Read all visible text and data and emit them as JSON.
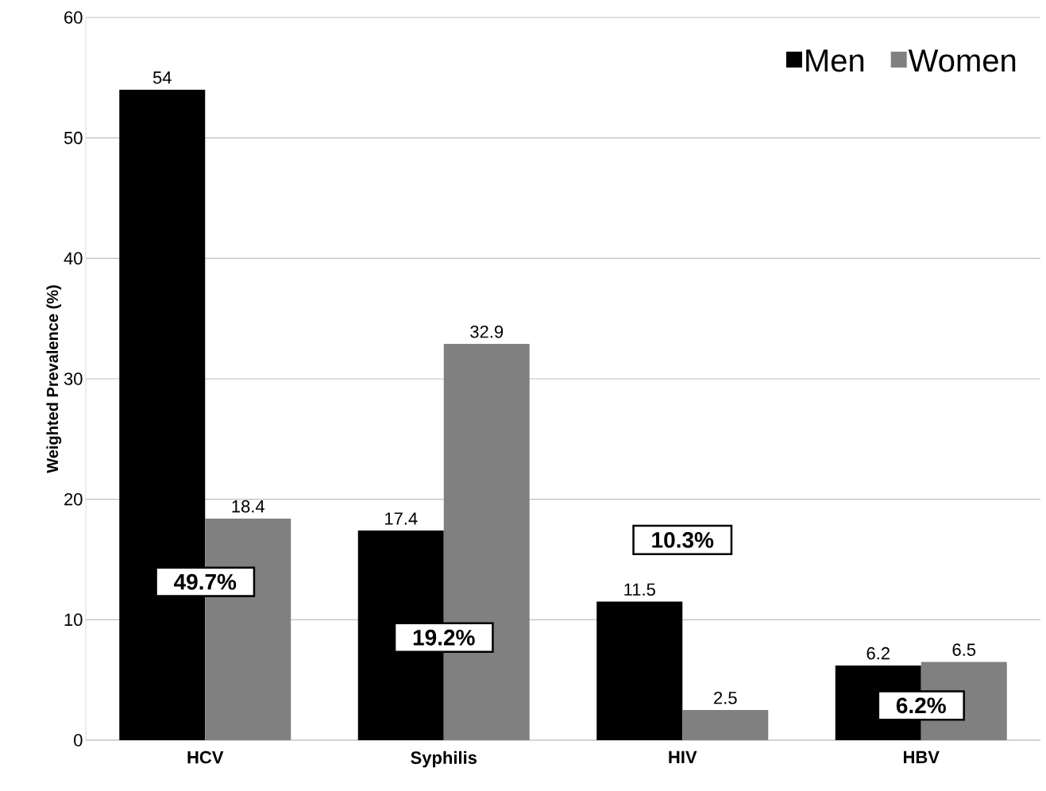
{
  "chart_data": {
    "type": "bar",
    "ylabel": "Weighted Prevalence (%)",
    "categories": [
      "HCV",
      "Syphilis",
      "HIV",
      "HBV"
    ],
    "series": [
      {
        "name": "Men",
        "color": "#000000",
        "values": [
          54,
          17.4,
          11.5,
          6.2
        ]
      },
      {
        "name": "Women",
        "color": "#808080",
        "values": [
          18.4,
          32.9,
          2.5,
          6.5
        ]
      }
    ],
    "ylim": [
      0,
      60
    ],
    "yticks": [
      0,
      10,
      20,
      30,
      40,
      50,
      60
    ],
    "grid": "y",
    "legend": "top right",
    "data_labels": true,
    "annotations": [
      "49.7%",
      "19.2%",
      "10.3%",
      "6.2%"
    ]
  }
}
